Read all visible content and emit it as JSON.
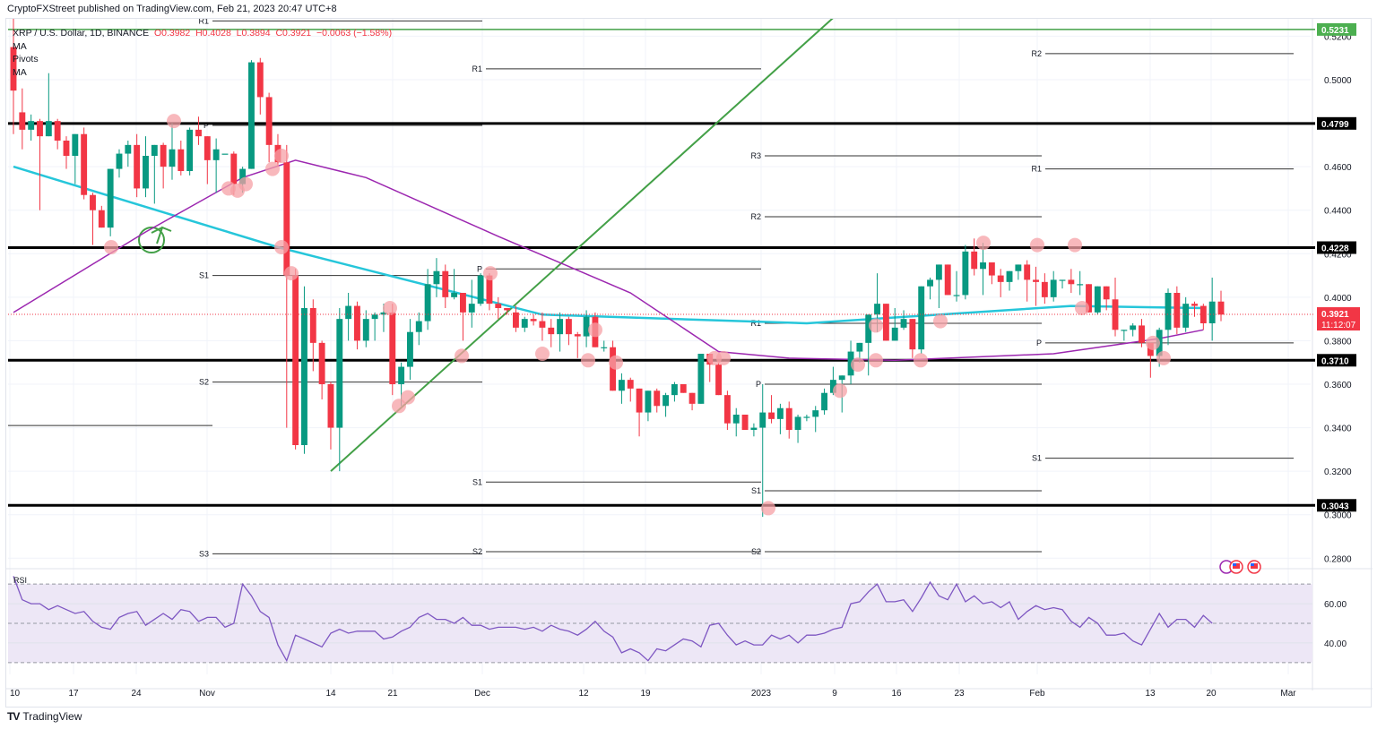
{
  "header": {
    "publisher": "CryptoFXStreet published on TradingView.com, Feb 21, 2023 20:47 UTC+8"
  },
  "legend": {
    "symbol": "XRP / U.S. Dollar, 1D, BINANCE",
    "open": "O0.3982",
    "high": "H0.4028",
    "low": "L0.3894",
    "close": "C0.3921",
    "change": "−0.0063 (−1.58%)",
    "indicators": [
      "MA",
      "Pivots",
      "MA"
    ]
  },
  "price_axis": {
    "currency": "USD",
    "ticks": [
      "0.5200",
      "0.5000",
      "0.4800",
      "0.4600",
      "0.4400",
      "0.4200",
      "0.4000",
      "0.3800",
      "0.3600",
      "0.3400",
      "0.3200",
      "0.3000",
      "0.2800"
    ],
    "badges": [
      {
        "label": "0.5231",
        "color": "#4caf50",
        "text_color": "#ffffff"
      },
      {
        "label": "0.4799",
        "color": "#000000",
        "text_color": "#ffffff"
      },
      {
        "label": "0.4228",
        "color": "#000000",
        "text_color": "#ffffff"
      },
      {
        "label": "0.3710",
        "color": "#000000",
        "text_color": "#ffffff"
      },
      {
        "label": "0.3043",
        "color": "#000000",
        "text_color": "#ffffff"
      }
    ],
    "last_price": {
      "label": "0.3921",
      "countdown": "11:12:07",
      "color": "#f23645"
    }
  },
  "rsi_axis": {
    "label": "RSI",
    "ticks": [
      "60.00",
      "40.00"
    ]
  },
  "time_axis": {
    "ticks": [
      "10",
      "17",
      "24",
      "Nov",
      "14",
      "21",
      "Dec",
      "12",
      "19",
      "2023",
      "9",
      "16",
      "23",
      "Feb",
      "13",
      "20",
      "Mar"
    ]
  },
  "footer": {
    "logo_mark": "TV",
    "logo_text": "TradingView"
  },
  "colors": {
    "up": "#089981",
    "down": "#f23645",
    "ma_fast": "#26c6da",
    "ma_slow": "#9c27b0",
    "trendline": "#43a047",
    "rsi": "#7e57c2",
    "rsi_band": "#ede7f6",
    "marker": "#f5a0a6"
  },
  "chart_data": {
    "type": "candlestick",
    "title": "XRP / U.S. Dollar, 1D, BINANCE",
    "xlabel": "",
    "ylabel": "USD",
    "ylim": [
      0.276,
      0.528
    ],
    "last": {
      "open": 0.3982,
      "high": 0.4028,
      "low": 0.3894,
      "close": 0.3921,
      "change": -0.0063,
      "change_pct": -1.58
    },
    "horizontal_levels": [
      0.5231,
      0.4799,
      0.4228,
      0.371,
      0.3043
    ],
    "pivot_sets": [
      {
        "period": "Oct",
        "levels": {
          "R1": 0.527,
          "P": 0.479,
          "S1": 0.41,
          "S2": 0.361,
          "S3": 0.282
        }
      },
      {
        "period": "Nov",
        "levels": {
          "R1": 0.505,
          "P": 0.413,
          "S1": 0.315,
          "S2": 0.283
        }
      },
      {
        "period": "Dec",
        "levels": {
          "R3": 0.465,
          "R2": 0.437,
          "R1": 0.388,
          "P": 0.36,
          "S1": 0.311,
          "S2": 0.283
        }
      },
      {
        "period": "Feb",
        "levels": {
          "R2": 0.512,
          "R1": 0.459,
          "P": 0.379,
          "S1": 0.326
        }
      }
    ],
    "candles": [
      [
        0.515,
        0.535,
        0.475,
        0.495
      ],
      [
        0.485,
        0.496,
        0.468,
        0.477
      ],
      [
        0.477,
        0.484,
        0.472,
        0.481
      ],
      [
        0.481,
        0.482,
        0.44,
        0.474
      ],
      [
        0.474,
        0.503,
        0.474,
        0.481
      ],
      [
        0.481,
        0.482,
        0.468,
        0.472
      ],
      [
        0.472,
        0.474,
        0.459,
        0.465
      ],
      [
        0.465,
        0.475,
        0.452,
        0.475
      ],
      [
        0.475,
        0.478,
        0.445,
        0.447
      ],
      [
        0.447,
        0.448,
        0.424,
        0.44
      ],
      [
        0.44,
        0.442,
        0.437,
        0.432
      ],
      [
        0.432,
        0.458,
        0.428,
        0.459
      ],
      [
        0.459,
        0.468,
        0.455,
        0.466
      ],
      [
        0.466,
        0.472,
        0.46,
        0.47
      ],
      [
        0.47,
        0.475,
        0.446,
        0.45
      ],
      [
        0.45,
        0.474,
        0.446,
        0.465
      ],
      [
        0.465,
        0.47,
        0.443,
        0.47
      ],
      [
        0.47,
        0.471,
        0.45,
        0.46
      ],
      [
        0.46,
        0.48,
        0.454,
        0.468
      ],
      [
        0.468,
        0.472,
        0.456,
        0.458
      ],
      [
        0.458,
        0.478,
        0.456,
        0.477
      ],
      [
        0.477,
        0.483,
        0.47,
        0.474
      ],
      [
        0.474,
        0.471,
        0.452,
        0.463
      ],
      [
        0.463,
        0.473,
        0.448,
        0.468
      ],
      [
        0.466,
        0.466,
        0.466,
        0.466
      ],
      [
        0.466,
        0.467,
        0.447,
        0.452
      ],
      [
        0.452,
        0.46,
        0.448,
        0.459
      ],
      [
        0.459,
        0.509,
        0.459,
        0.508
      ],
      [
        0.508,
        0.51,
        0.484,
        0.492
      ],
      [
        0.492,
        0.494,
        0.462,
        0.47
      ],
      [
        0.47,
        0.475,
        0.46,
        0.462
      ],
      [
        0.462,
        0.47,
        0.34,
        0.41
      ],
      [
        0.41,
        0.413,
        0.33,
        0.332
      ],
      [
        0.332,
        0.405,
        0.328,
        0.395
      ],
      [
        0.395,
        0.399,
        0.366,
        0.379
      ],
      [
        0.379,
        0.38,
        0.353,
        0.36
      ],
      [
        0.36,
        0.361,
        0.33,
        0.34
      ],
      [
        0.34,
        0.395,
        0.32,
        0.39
      ],
      [
        0.39,
        0.402,
        0.38,
        0.396
      ],
      [
        0.396,
        0.398,
        0.376,
        0.38
      ],
      [
        0.38,
        0.394,
        0.377,
        0.39
      ],
      [
        0.39,
        0.393,
        0.38,
        0.392
      ],
      [
        0.392,
        0.397,
        0.384,
        0.393
      ],
      [
        0.393,
        0.397,
        0.355,
        0.36
      ],
      [
        0.36,
        0.37,
        0.35,
        0.368
      ],
      [
        0.368,
        0.39,
        0.362,
        0.384
      ],
      [
        0.384,
        0.393,
        0.378,
        0.389
      ],
      [
        0.389,
        0.413,
        0.385,
        0.406
      ],
      [
        0.406,
        0.418,
        0.4,
        0.412
      ],
      [
        0.412,
        0.415,
        0.395,
        0.4
      ],
      [
        0.4,
        0.413,
        0.399,
        0.402
      ],
      [
        0.402,
        0.399,
        0.38,
        0.393
      ],
      [
        0.393,
        0.408,
        0.386,
        0.397
      ],
      [
        0.397,
        0.411,
        0.396,
        0.41
      ],
      [
        0.41,
        0.411,
        0.394,
        0.397
      ],
      [
        0.397,
        0.4,
        0.39,
        0.395
      ],
      [
        0.395,
        0.394,
        0.392,
        0.394
      ],
      [
        0.393,
        0.396,
        0.384,
        0.386
      ],
      [
        0.386,
        0.391,
        0.384,
        0.39
      ],
      [
        0.39,
        0.392,
        0.387,
        0.389
      ],
      [
        0.389,
        0.393,
        0.38,
        0.386
      ],
      [
        0.386,
        0.39,
        0.377,
        0.383
      ],
      [
        0.383,
        0.393,
        0.375,
        0.39
      ],
      [
        0.39,
        0.391,
        0.378,
        0.383
      ],
      [
        0.383,
        0.384,
        0.372,
        0.382
      ],
      [
        0.382,
        0.394,
        0.377,
        0.391
      ],
      [
        0.391,
        0.393,
        0.378,
        0.377
      ],
      [
        0.377,
        0.38,
        0.375,
        0.377
      ],
      [
        0.377,
        0.38,
        0.366,
        0.357
      ],
      [
        0.357,
        0.365,
        0.351,
        0.362
      ],
      [
        0.362,
        0.363,
        0.352,
        0.358
      ],
      [
        0.358,
        0.357,
        0.336,
        0.347
      ],
      [
        0.347,
        0.357,
        0.343,
        0.357
      ],
      [
        0.357,
        0.358,
        0.347,
        0.35
      ],
      [
        0.35,
        0.356,
        0.345,
        0.355
      ],
      [
        0.355,
        0.361,
        0.352,
        0.36
      ],
      [
        0.36,
        0.36,
        0.356,
        0.356
      ],
      [
        0.356,
        0.356,
        0.348,
        0.351
      ],
      [
        0.351,
        0.373,
        0.351,
        0.374
      ],
      [
        0.374,
        0.373,
        0.361,
        0.369
      ],
      [
        0.369,
        0.37,
        0.355,
        0.355
      ],
      [
        0.355,
        0.357,
        0.339,
        0.342
      ],
      [
        0.342,
        0.349,
        0.336,
        0.346
      ],
      [
        0.346,
        0.346,
        0.339,
        0.339
      ],
      [
        0.339,
        0.342,
        0.336,
        0.34
      ],
      [
        0.34,
        0.36,
        0.299,
        0.347
      ],
      [
        0.347,
        0.355,
        0.342,
        0.344
      ],
      [
        0.344,
        0.351,
        0.337,
        0.349
      ],
      [
        0.349,
        0.352,
        0.335,
        0.339
      ],
      [
        0.339,
        0.346,
        0.333,
        0.345
      ],
      [
        0.345,
        0.346,
        0.343,
        0.345
      ],
      [
        0.345,
        0.35,
        0.338,
        0.348
      ],
      [
        0.348,
        0.358,
        0.346,
        0.356
      ],
      [
        0.356,
        0.368,
        0.355,
        0.362
      ],
      [
        0.362,
        0.363,
        0.347,
        0.364
      ],
      [
        0.364,
        0.38,
        0.36,
        0.375
      ],
      [
        0.375,
        0.375,
        0.37,
        0.379
      ],
      [
        0.379,
        0.386,
        0.364,
        0.392
      ],
      [
        0.392,
        0.411,
        0.384,
        0.397
      ],
      [
        0.397,
        0.396,
        0.389,
        0.38
      ],
      [
        0.38,
        0.395,
        0.382,
        0.386
      ],
      [
        0.386,
        0.394,
        0.385,
        0.39
      ],
      [
        0.39,
        0.387,
        0.372,
        0.376
      ],
      [
        0.376,
        0.397,
        0.374,
        0.405
      ],
      [
        0.405,
        0.409,
        0.399,
        0.408
      ],
      [
        0.408,
        0.412,
        0.395,
        0.415
      ],
      [
        0.415,
        0.411,
        0.404,
        0.401
      ],
      [
        0.401,
        0.412,
        0.398,
        0.401
      ],
      [
        0.401,
        0.424,
        0.399,
        0.421
      ],
      [
        0.421,
        0.427,
        0.41,
        0.413
      ],
      [
        0.413,
        0.425,
        0.401,
        0.416
      ],
      [
        0.416,
        0.416,
        0.406,
        0.41
      ],
      [
        0.41,
        0.413,
        0.4,
        0.407
      ],
      [
        0.407,
        0.411,
        0.403,
        0.412
      ],
      [
        0.412,
        0.415,
        0.408,
        0.415
      ],
      [
        0.415,
        0.417,
        0.398,
        0.408
      ],
      [
        0.408,
        0.414,
        0.396,
        0.407
      ],
      [
        0.407,
        0.411,
        0.397,
        0.4
      ],
      [
        0.4,
        0.412,
        0.398,
        0.408
      ],
      [
        0.408,
        0.404,
        0.404,
        0.408
      ],
      [
        0.408,
        0.413,
        0.402,
        0.406
      ],
      [
        0.406,
        0.412,
        0.401,
        0.406
      ],
      [
        0.406,
        0.403,
        0.395,
        0.393
      ],
      [
        0.393,
        0.405,
        0.392,
        0.405
      ],
      [
        0.405,
        0.403,
        0.394,
        0.399
      ],
      [
        0.399,
        0.409,
        0.382,
        0.385
      ],
      [
        0.385,
        0.382,
        0.38,
        0.385
      ],
      [
        0.385,
        0.388,
        0.382,
        0.387
      ],
      [
        0.387,
        0.39,
        0.377,
        0.379
      ],
      [
        0.379,
        0.372,
        0.363,
        0.373
      ],
      [
        0.373,
        0.386,
        0.368,
        0.385
      ],
      [
        0.385,
        0.404,
        0.378,
        0.402
      ],
      [
        0.402,
        0.405,
        0.383,
        0.386
      ],
      [
        0.386,
        0.4,
        0.384,
        0.397
      ],
      [
        0.397,
        0.398,
        0.391,
        0.396
      ],
      [
        0.396,
        0.397,
        0.385,
        0.388
      ],
      [
        0.388,
        0.409,
        0.38,
        0.398
      ],
      [
        0.398,
        0.403,
        0.389,
        0.392
      ]
    ],
    "rsi": {
      "ylim": [
        24,
        76
      ],
      "bands": [
        70,
        50,
        30
      ],
      "ticks": [
        60,
        40
      ],
      "values": [
        74,
        62,
        60,
        60,
        57,
        59,
        57,
        55,
        56,
        51,
        48,
        47,
        53,
        55,
        56,
        49,
        52,
        55,
        52,
        57,
        56,
        51,
        53,
        53,
        48,
        50,
        70,
        64,
        56,
        53,
        39,
        31,
        44,
        42,
        40,
        38,
        45,
        47,
        45,
        46,
        46,
        46,
        42,
        43,
        46,
        48,
        53,
        55,
        52,
        52,
        50,
        53,
        49,
        49,
        47,
        48,
        48,
        48,
        47,
        48,
        46,
        49,
        47,
        46,
        44,
        47,
        51,
        46,
        43,
        35,
        37,
        35,
        31,
        37,
        36,
        39,
        42,
        41,
        38,
        49,
        50,
        44,
        39,
        41,
        39,
        39,
        44,
        42,
        44,
        40,
        44,
        44,
        45,
        47,
        48,
        60,
        61,
        66,
        70,
        61,
        61,
        62,
        56,
        63,
        71,
        64,
        62,
        70,
        61,
        64,
        60,
        61,
        58,
        61,
        52,
        56,
        59,
        57,
        58,
        57,
        51,
        48,
        53,
        50,
        44,
        44,
        45,
        41,
        39,
        47,
        55,
        48,
        52,
        52,
        48,
        54,
        50
      ]
    },
    "ma_fast_line": [
      [
        0,
        0.46
      ],
      [
        30,
        0.423
      ],
      [
        60,
        0.392
      ],
      [
        90,
        0.388
      ],
      [
        120,
        0.396
      ],
      [
        135,
        0.395
      ]
    ],
    "ma_slow_line": [
      [
        0,
        0.393
      ],
      [
        15,
        0.43
      ],
      [
        26,
        0.455
      ],
      [
        32,
        0.463
      ],
      [
        40,
        0.455
      ],
      [
        55,
        0.428
      ],
      [
        70,
        0.402
      ],
      [
        80,
        0.375
      ],
      [
        88,
        0.372
      ],
      [
        100,
        0.371
      ],
      [
        118,
        0.374
      ],
      [
        130,
        0.381
      ],
      [
        135,
        0.385
      ]
    ]
  }
}
